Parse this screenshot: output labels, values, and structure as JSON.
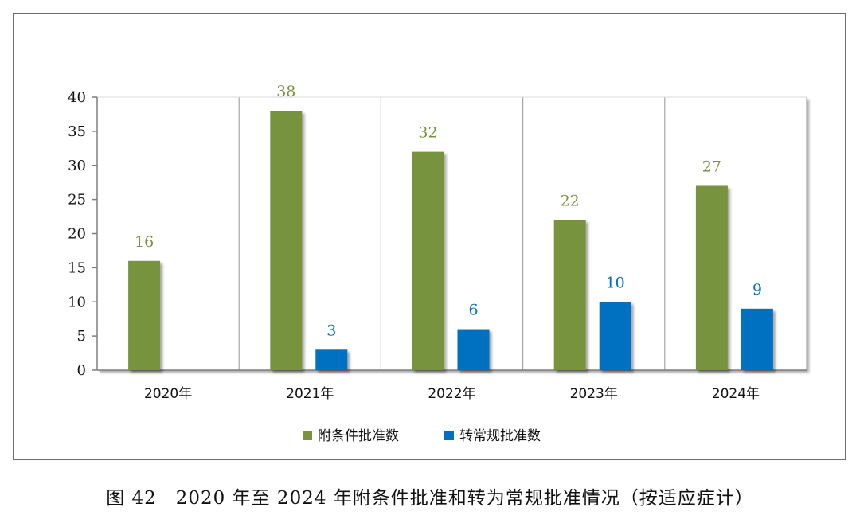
{
  "caption": "图 42　2020 年至 2024 年附条件批准和转为常规批准情况（按适应症计）",
  "chart_data": {
    "type": "bar",
    "categories": [
      "2020年",
      "2021年",
      "2022年",
      "2023年",
      "2024年"
    ],
    "series": [
      {
        "name": "附条件批准数",
        "values": [
          16,
          38,
          32,
          22,
          27
        ],
        "color": "#77933c"
      },
      {
        "name": "转常规批准数",
        "values": [
          null,
          3,
          6,
          10,
          9
        ],
        "color": "#0070c0"
      }
    ],
    "ylim": [
      0,
      40
    ],
    "yticks": [
      0,
      5,
      10,
      15,
      20,
      25,
      30,
      35,
      40
    ],
    "grid": false,
    "legend_position": "bottom"
  }
}
